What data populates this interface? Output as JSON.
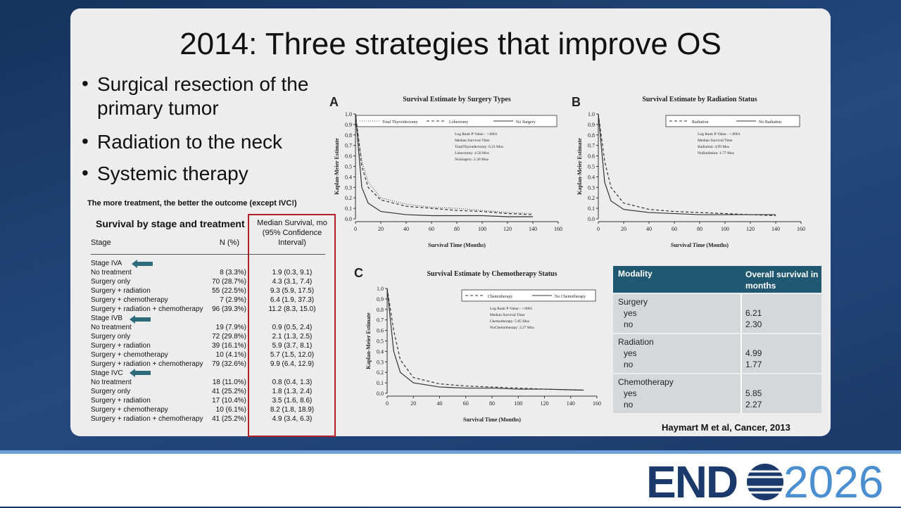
{
  "title": "2014: Three strategies that improve OS",
  "bullets": [
    "Surgical resection of the primary tumor",
    "Radiation to the neck",
    "Systemic therapy"
  ],
  "table_note": "The more treatment, the better the outcome (except IVC!)",
  "stage_table": {
    "title": "Survival by stage and treatment",
    "headers": [
      "Stage",
      "N (%)",
      "Median Survival, mo (95% Confidence Interval)"
    ],
    "rows": [
      [
        "Stage IVA"
      ],
      [
        "No treatment",
        "8 (3.3%)",
        "1.9 (0.3, 9.1)"
      ],
      [
        "Surgery only",
        "70 (28.7%)",
        "4.3 (3.1, 7.4)"
      ],
      [
        "Surgery + radiation",
        "55 (22.5%)",
        "9.3 (5.9, 17.5)"
      ],
      [
        "Surgery + chemotherapy",
        "7 (2.9%)",
        "6.4 (1.9, 37.3)"
      ],
      [
        "Surgery + radiation + chemotherapy",
        "96 (39.3%)",
        "11.2 (8.3, 15.0)"
      ],
      [
        "Stage IVB"
      ],
      [
        "No treatment",
        "19 (7.9%)",
        "0.9 (0.5, 2.4)"
      ],
      [
        "Surgery only",
        "72 (29.8%)",
        "2.1 (1.3, 2.5)"
      ],
      [
        "Surgery + radiation",
        "39 (16.1%)",
        "5.9 (3.7, 8.1)"
      ],
      [
        "Surgery + chemotherapy",
        "10 (4.1%)",
        "5.7 (1.5, 12.0)"
      ],
      [
        "Surgery + radiation + chemotherapy",
        "79 (32.6%)",
        "9.9 (6.4, 12.9)"
      ],
      [
        "Stage IVC"
      ],
      [
        "No treatment",
        "18 (11.0%)",
        "0.8 (0.4, 1.3)"
      ],
      [
        "Surgery only",
        "41 (25.2%)",
        "1.8 (1.3, 2.4)"
      ],
      [
        "Surgery + radiation",
        "17 (10.4%)",
        "3.5 (1.6, 8.6)"
      ],
      [
        "Surgery + chemotherapy",
        "10 (6.1%)",
        "8.2 (1.8, 18.9)"
      ],
      [
        "Surgery + radiation + chemotherapy",
        "41 (25.2%)",
        "4.9 (3.4, 6.3)"
      ]
    ]
  },
  "modality_table": {
    "headers": [
      "Modality",
      "Overall survival in months"
    ],
    "groups": [
      {
        "name": "Surgery",
        "rows": [
          [
            "yes",
            "6.21"
          ],
          [
            "no",
            "2.30"
          ]
        ]
      },
      {
        "name": "Radiation",
        "rows": [
          [
            "yes",
            "4.99"
          ],
          [
            "no",
            "1.77"
          ]
        ]
      },
      {
        "name": "Chemotherapy",
        "rows": [
          [
            "yes",
            "5.85"
          ],
          [
            "no",
            "2.27"
          ]
        ]
      }
    ]
  },
  "citation": "Haymart M et al, Cancer, 2013",
  "logo": {
    "left": "END",
    "right": "2026"
  },
  "chart_data": [
    {
      "type": "line",
      "panel": "A",
      "title": "Survival Estimate by Surgery Types",
      "xlabel": "Survival Time (Months)",
      "ylabel": "Kaplan-Meier Estimate",
      "annotations": [
        "Log Rank P-Value : <.0001",
        "Median Survival Time",
        "TotalThyroidectomy: 6.21 Mos",
        "Lobectomy: 4.50 Mos",
        "NoSurgery: 2.30 Mos"
      ],
      "x": [
        0,
        5,
        10,
        20,
        40,
        60,
        80,
        100,
        120,
        140
      ],
      "series": [
        {
          "name": "Total Thyroidectomy",
          "color": "#555555",
          "style": "dotted",
          "values": [
            1.0,
            0.55,
            0.35,
            0.2,
            0.14,
            0.11,
            0.1,
            0.08,
            0.06,
            0.05
          ]
        },
        {
          "name": "Lobectomy",
          "color": "#333333",
          "style": "dashed",
          "values": [
            1.0,
            0.5,
            0.3,
            0.18,
            0.12,
            0.1,
            0.08,
            0.07,
            0.05,
            0.04
          ]
        },
        {
          "name": "No Surgery",
          "color": "#333333",
          "style": "solid",
          "values": [
            1.0,
            0.3,
            0.15,
            0.07,
            0.04,
            0.03,
            0.03,
            0.03,
            0.02,
            0.02
          ]
        }
      ],
      "xlim": [
        0,
        160
      ],
      "ylim": [
        0,
        1
      ],
      "xticks": [
        0,
        20,
        40,
        60,
        80,
        100,
        120,
        140,
        160
      ],
      "yticks": [
        {
          "value": 0,
          "label": "0.0"
        },
        0.1,
        0.2,
        0.3,
        0.4,
        0.5,
        0.6,
        0.7,
        0.8,
        0.9,
        {
          "value": 1,
          "label": "1.0"
        }
      ]
    },
    {
      "type": "line",
      "panel": "B",
      "title": "Survival Estimate by Radiation Status",
      "xlabel": "Survival Time (Months)",
      "ylabel": "Kaplan-Meier Estimate",
      "annotations": [
        "Log Rank P-Value : <.0001",
        "Median Survival Time",
        "Radiation: 4.99 Mos",
        "NoRadiation: 1.77 Mos"
      ],
      "x": [
        0,
        5,
        10,
        20,
        40,
        60,
        80,
        100,
        120,
        140
      ],
      "series": [
        {
          "name": "Radiation",
          "color": "#333333",
          "style": "dashed",
          "values": [
            1.0,
            0.55,
            0.3,
            0.15,
            0.09,
            0.07,
            0.06,
            0.05,
            0.04,
            0.03
          ]
        },
        {
          "name": "No Radiation",
          "color": "#333333",
          "style": "solid",
          "values": [
            1.0,
            0.35,
            0.17,
            0.09,
            0.06,
            0.05,
            0.04,
            0.04,
            0.04,
            0.04
          ]
        }
      ],
      "xlim": [
        0,
        160
      ],
      "ylim": [
        0,
        1
      ],
      "xticks": [
        0,
        20,
        40,
        60,
        80,
        100,
        120,
        140,
        160
      ],
      "yticks": [
        {
          "value": 0,
          "label": "0.0"
        },
        0.1,
        0.2,
        0.3,
        0.4,
        0.5,
        0.6,
        0.7,
        0.8,
        0.9,
        {
          "value": 1,
          "label": "1.0"
        }
      ]
    },
    {
      "type": "line",
      "panel": "C",
      "title": "Survival Estimate by Chemotherapy Status",
      "xlabel": "Survival Time (Months)",
      "ylabel": "Kaplan-Meier Estimate",
      "annotations": [
        "Log Rank P-Value : <.0001",
        "Median Survival Time",
        "Chemotherapy: 5.85 Mos",
        "NoChemotherapy: 2.27 Mos"
      ],
      "x": [
        0,
        5,
        10,
        20,
        40,
        60,
        80,
        100,
        120,
        150
      ],
      "series": [
        {
          "name": "Chemotherapy",
          "color": "#333333",
          "style": "dashed",
          "values": [
            1.0,
            0.6,
            0.32,
            0.15,
            0.09,
            0.07,
            0.06,
            0.05,
            0.04,
            0.03
          ]
        },
        {
          "name": "No Chemotherapy",
          "color": "#333333",
          "style": "solid",
          "values": [
            1.0,
            0.4,
            0.2,
            0.1,
            0.06,
            0.05,
            0.05,
            0.04,
            0.04,
            0.03
          ]
        }
      ],
      "xlim": [
        0,
        160
      ],
      "ylim": [
        0,
        1
      ],
      "xticks": [
        0,
        20,
        40,
        60,
        80,
        100,
        120,
        140,
        160
      ],
      "yticks": [
        {
          "value": 0,
          "label": "0.0"
        },
        0.1,
        0.2,
        0.3,
        0.4,
        0.5,
        0.6,
        0.7,
        0.8,
        0.9,
        {
          "value": 1,
          "label": "1.0"
        }
      ]
    }
  ]
}
